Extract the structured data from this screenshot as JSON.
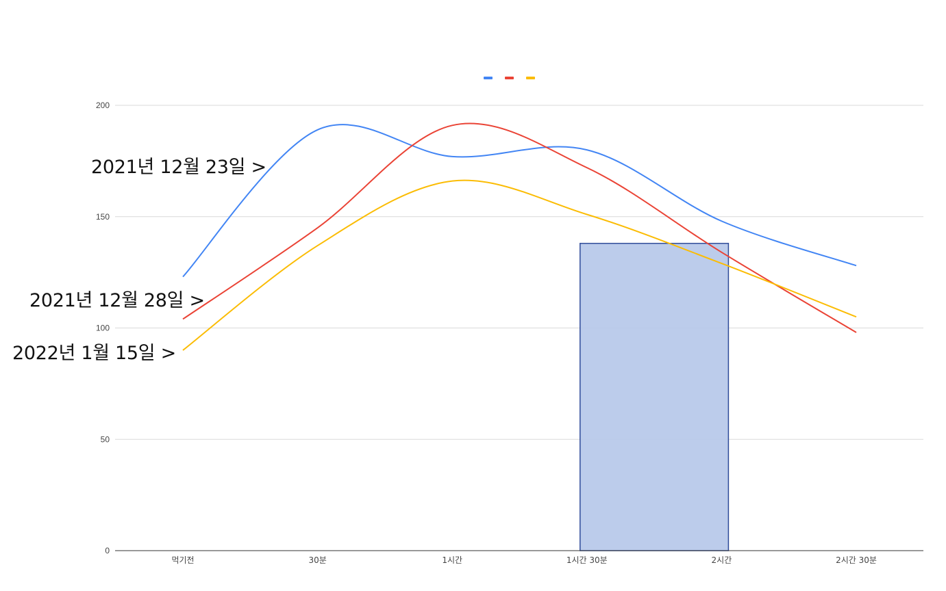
{
  "chart_data": {
    "type": "line",
    "title": "",
    "xlabel": "",
    "ylabel": "",
    "categories": [
      "먹기전",
      "30분",
      "1시간",
      "1시간 30분",
      "2시간",
      "2시간 30분"
    ],
    "ylim": [
      0,
      200
    ],
    "yticks": [
      0,
      50,
      100,
      150,
      200
    ],
    "grid": true,
    "legend_position": "top",
    "smooth": true,
    "series": [
      {
        "name": "",
        "color": "#4285F4",
        "values": [
          123,
          189,
          177,
          180,
          148,
          128
        ],
        "label": "2021년 12월 23일 >"
      },
      {
        "name": "",
        "color": "#EA4335",
        "values": [
          104,
          145,
          191,
          172,
          134,
          98
        ],
        "label": "2021년 12월 28일 >"
      },
      {
        "name": "",
        "color": "#FBBC04",
        "values": [
          90,
          137,
          166,
          151,
          129,
          105
        ],
        "label": "2022년 1월 15일 >"
      }
    ],
    "highlight": {
      "from_category": "1시간 30분",
      "to_category": "2시간",
      "from_value": 0,
      "to_value": 138,
      "fill": "#B8C9EA",
      "stroke": "#2F4B99"
    }
  }
}
